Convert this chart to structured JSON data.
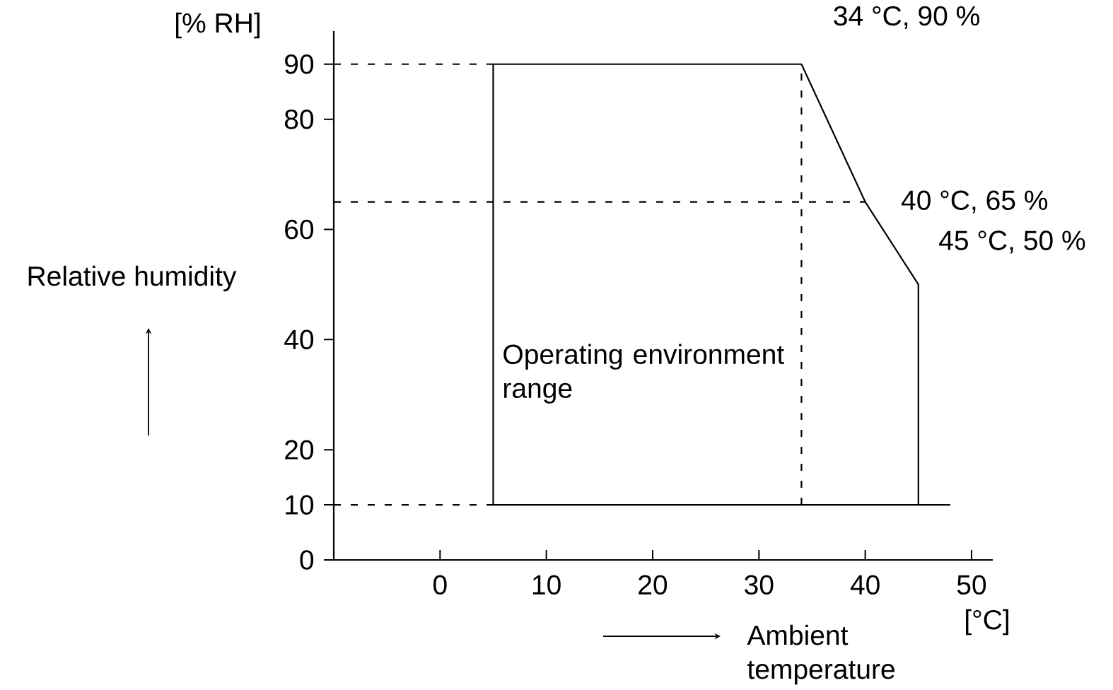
{
  "chart_data": {
    "type": "line",
    "xlabel": "Ambient temperature",
    "ylabel": "Relative humidity",
    "annotations": [
      "[% RH]",
      "[°C]",
      "Operating environment range",
      {
        "text": "34 °C, 90 %",
        "x": 34,
        "y": 90
      },
      {
        "text": "40 °C, 65 %",
        "x": 40,
        "y": 65
      },
      {
        "text": "45 °C, 50 %",
        "x": 45,
        "y": 50
      }
    ],
    "xlim": [
      -10,
      52
    ],
    "ylim": [
      0,
      96
    ],
    "xticks": [
      0,
      10,
      20,
      30,
      40,
      50
    ],
    "yticks": [
      0,
      10,
      20,
      40,
      60,
      80,
      90
    ],
    "series": [
      {
        "color": "#000000",
        "line_style": "solid",
        "x": [
          48,
          5,
          5,
          34,
          40,
          45,
          45
        ],
        "values": [
          10,
          10,
          90,
          90,
          65,
          50,
          10
        ]
      },
      {
        "color": "#000000",
        "line_style": "dashed",
        "x": [
          -10,
          5
        ],
        "values": [
          90,
          90
        ]
      },
      {
        "color": "#000000",
        "line_style": "dashed",
        "x": [
          -10,
          40
        ],
        "values": [
          65,
          65
        ]
      },
      {
        "color": "#000000",
        "line_style": "dashed",
        "x": [
          -10,
          5
        ],
        "values": [
          10,
          10
        ]
      },
      {
        "color": "#000000",
        "line_style": "dashed",
        "x": [
          34,
          34
        ],
        "values": [
          10,
          90
        ]
      }
    ]
  }
}
